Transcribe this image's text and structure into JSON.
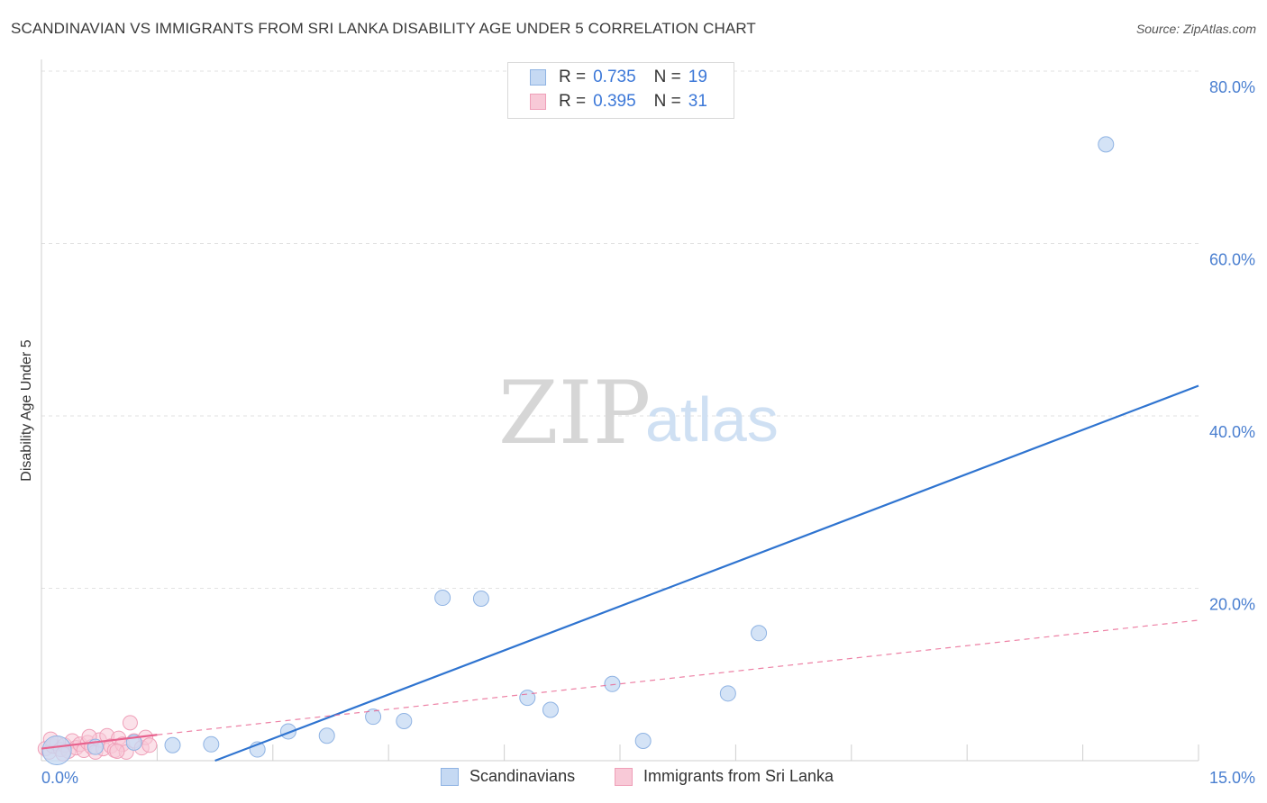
{
  "title": "SCANDINAVIAN VS IMMIGRANTS FROM SRI LANKA DISABILITY AGE UNDER 5 CORRELATION CHART",
  "source": "Source: ZipAtlas.com",
  "watermark": {
    "zip": "ZIP",
    "atlas": "atlas"
  },
  "legend": {
    "rows": [
      {
        "r_label": "R =",
        "r_value": "0.735",
        "n_label": "N =",
        "n_value": "19"
      },
      {
        "r_label": "R =",
        "r_value": "0.395",
        "n_label": "N =",
        "n_value": "31"
      }
    ]
  },
  "bottom_legend": [
    {
      "label": "Scandinavians"
    },
    {
      "label": "Immigrants from Sri Lanka"
    }
  ],
  "colors": {
    "blue_line": "#2f74d0",
    "blue_fill": "#c5d9f3",
    "blue_stroke": "#8fb3e3",
    "pink_line": "#e8628e",
    "pink_fill": "#f8c9d7",
    "pink_stroke": "#ef9fb8",
    "grid": "#e2e2e2",
    "axis_label": "#4a7fd0"
  },
  "chart_data": {
    "type": "scatter",
    "xlabel": "",
    "ylabel": "Disability Age Under 5",
    "xlim": [
      0,
      15
    ],
    "ylim": [
      0,
      80
    ],
    "x_tick_labels": [
      {
        "value": 0,
        "label": "0.0%"
      },
      {
        "value": 15,
        "label": "15.0%"
      }
    ],
    "y_tick_labels": [
      {
        "value": 20,
        "label": "20.0%"
      },
      {
        "value": 40,
        "label": "40.0%"
      },
      {
        "value": 60,
        "label": "60.0%"
      },
      {
        "value": 80,
        "label": "80.0%"
      }
    ],
    "x_gridlines": [
      1.5,
      3.0,
      4.5,
      6.0,
      7.5,
      9.0,
      10.5,
      12.0,
      13.5,
      15.0
    ],
    "y_gridlines": [
      20,
      40,
      60,
      80
    ],
    "series": [
      {
        "name": "Scandinavians",
        "points": [
          {
            "x": 0.2,
            "y": 1.2,
            "size": "large"
          },
          {
            "x": 1.2,
            "y": 2.1
          },
          {
            "x": 1.7,
            "y": 1.8
          },
          {
            "x": 2.2,
            "y": 1.9
          },
          {
            "x": 2.8,
            "y": 1.3
          },
          {
            "x": 3.2,
            "y": 3.4
          },
          {
            "x": 3.7,
            "y": 2.9
          },
          {
            "x": 4.3,
            "y": 5.1
          },
          {
            "x": 4.7,
            "y": 4.6
          },
          {
            "x": 5.2,
            "y": 18.9
          },
          {
            "x": 5.7,
            "y": 18.8
          },
          {
            "x": 6.3,
            "y": 7.3
          },
          {
            "x": 6.6,
            "y": 5.9
          },
          {
            "x": 7.4,
            "y": 8.9
          },
          {
            "x": 7.8,
            "y": 2.3
          },
          {
            "x": 8.9,
            "y": 7.8
          },
          {
            "x": 9.3,
            "y": 14.8
          },
          {
            "x": 13.8,
            "y": 71.5
          },
          {
            "x": 0.7,
            "y": 1.6
          }
        ],
        "trend": {
          "x1": 2.25,
          "y1": 0.0,
          "x2": 15.0,
          "y2": 43.5,
          "style": "solid"
        }
      },
      {
        "name": "Immigrants from Sri Lanka",
        "points": [
          {
            "x": 0.05,
            "y": 1.4
          },
          {
            "x": 0.1,
            "y": 1.0
          },
          {
            "x": 0.15,
            "y": 1.7
          },
          {
            "x": 0.2,
            "y": 2.0
          },
          {
            "x": 0.25,
            "y": 1.3
          },
          {
            "x": 0.3,
            "y": 1.8
          },
          {
            "x": 0.35,
            "y": 1.1
          },
          {
            "x": 0.4,
            "y": 2.3
          },
          {
            "x": 0.45,
            "y": 1.5
          },
          {
            "x": 0.5,
            "y": 1.9
          },
          {
            "x": 0.55,
            "y": 1.2
          },
          {
            "x": 0.6,
            "y": 2.1
          },
          {
            "x": 0.65,
            "y": 1.6
          },
          {
            "x": 0.7,
            "y": 1.0
          },
          {
            "x": 0.75,
            "y": 2.4
          },
          {
            "x": 0.8,
            "y": 1.4
          },
          {
            "x": 0.85,
            "y": 2.9
          },
          {
            "x": 0.9,
            "y": 1.7
          },
          {
            "x": 0.95,
            "y": 1.2
          },
          {
            "x": 1.0,
            "y": 2.6
          },
          {
            "x": 1.05,
            "y": 1.9
          },
          {
            "x": 1.1,
            "y": 1.0
          },
          {
            "x": 1.15,
            "y": 4.4
          },
          {
            "x": 1.2,
            "y": 2.3
          },
          {
            "x": 1.3,
            "y": 1.5
          },
          {
            "x": 1.35,
            "y": 2.7
          },
          {
            "x": 1.4,
            "y": 1.8
          },
          {
            "x": 0.12,
            "y": 2.5
          },
          {
            "x": 0.28,
            "y": 0.8
          },
          {
            "x": 0.62,
            "y": 2.8
          },
          {
            "x": 0.98,
            "y": 1.1
          }
        ],
        "trend_solid": {
          "x1": 0.0,
          "y1": 1.4,
          "x2": 1.5,
          "y2": 3.0
        },
        "trend_dashed": {
          "x1": 1.5,
          "y1": 3.0,
          "x2": 15.0,
          "y2": 16.3
        }
      }
    ]
  }
}
